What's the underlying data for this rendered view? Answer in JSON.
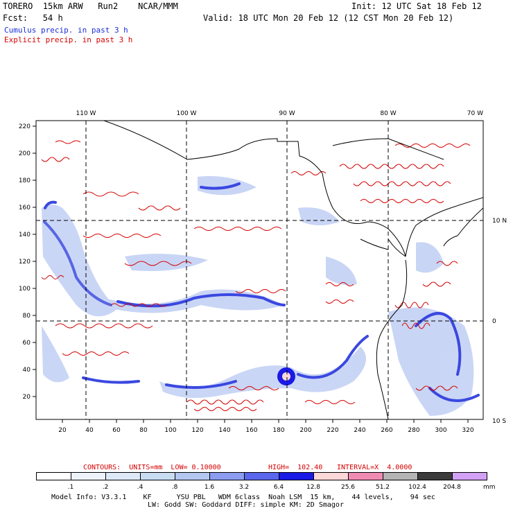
{
  "header": {
    "model": "TORERO  15km ARW   Run2    NCAR/MMM",
    "init": "Init: 12 UTC Sat 18 Feb 12",
    "fcst": "Fcst:   54 h",
    "valid": "Valid: 18 UTC Mon 20 Feb 12 (12 CST Mon 20 Feb 12)",
    "cumulus_legend": "Cumulus precip. in past 3 h",
    "explicit_legend": "Explicit precip. in past 3 h"
  },
  "colors": {
    "cumulus": "#1a2fd6",
    "explicit": "#d40000",
    "grid": "#000000"
  },
  "map": {
    "top_labels": [
      "110 W",
      "100 W",
      "90 W",
      "80 W",
      "70 W"
    ],
    "left_labels": [
      "220",
      "200",
      "180",
      "160",
      "140",
      "120",
      "100",
      "80",
      "60",
      "40",
      "20"
    ],
    "bottom_labels": [
      "20",
      "40",
      "60",
      "80",
      "100",
      "120",
      "140",
      "160",
      "180",
      "200",
      "220",
      "240",
      "260",
      "280",
      "300",
      "320"
    ],
    "right_labels": [
      "10 N",
      "0",
      "10 S"
    ]
  },
  "contour_info": {
    "contours": "CONTOURS:  UNITS=mm  LOW= 0.10000",
    "high": "HIGH=  102.40",
    "interval": "INTERVAL=X  4.0000"
  },
  "colorbar": {
    "values": [
      ".1",
      ".2",
      ".4",
      ".8",
      "1.6",
      "3.2",
      "6.4",
      "12.8",
      "25.6",
      "51.2",
      "102.4",
      "204.8"
    ],
    "units": "mm",
    "colors": [
      "#ffffff",
      "#eef3fb",
      "#dde9f7",
      "#c8ddf2",
      "#b4c7f0",
      "#8c9cf0",
      "#5a66ec",
      "#1a1ae6",
      "#fcd8d8",
      "#f08cb4",
      "#b4b4b4",
      "#3c3c3c",
      "#d2a0f5"
    ]
  },
  "footer": {
    "line1": "Model Info: V3.3.1    KF      YSU PBL   WDM 6class  Noah LSM  15 km,    44 levels,    94 sec",
    "line2": "LW: Godd SW: Goddard DIFF: simple KM: 2D Smagor"
  }
}
